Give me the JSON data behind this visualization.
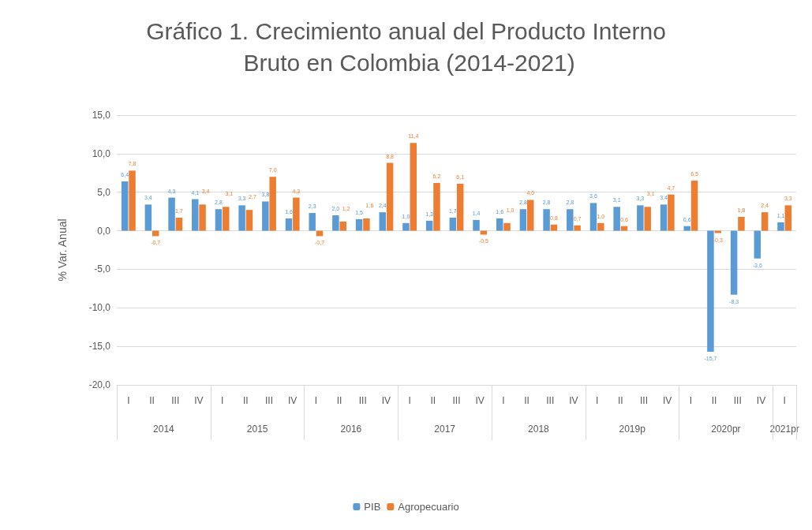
{
  "chart_data": {
    "type": "bar",
    "title": "Gráfico 1. Crecimiento anual del Producto Interno Bruto en Colombia (2014-2021)",
    "ylabel": "% Var. Anual",
    "categories": [
      "I",
      "II",
      "III",
      "IV",
      "I",
      "II",
      "III",
      "IV",
      "I",
      "II",
      "III",
      "IV",
      "I",
      "II",
      "III",
      "IV",
      "I",
      "II",
      "III",
      "IV",
      "I",
      "II",
      "III",
      "IV",
      "I",
      "II",
      "III",
      "IV",
      "I"
    ],
    "annotations": [
      "2014",
      "2015",
      "2016",
      "2017",
      "2018",
      "2019p",
      "2020pr",
      "2021pr"
    ],
    "series": [
      {
        "name": "PIB",
        "color": "#5b9bd5",
        "values": [
          6.4,
          3.4,
          4.3,
          4.1,
          2.8,
          3.3,
          3.8,
          1.6,
          2.3,
          2.0,
          1.5,
          2.4,
          1.0,
          1.3,
          1.7,
          1.4,
          1.6,
          2.8,
          2.8,
          2.8,
          3.6,
          3.1,
          3.3,
          3.4,
          0.6,
          -15.7,
          -8.3,
          -3.6,
          1.1
        ],
        "value_labels": [
          "6,4",
          "3,4",
          "4,3",
          "4,1",
          "2,8",
          "3,3",
          "3,8",
          "1,6",
          "2,3",
          "2,0",
          "1,5",
          "2,4",
          "1,0",
          "1,3",
          "1,7",
          "1,4",
          "1,6",
          "2,8",
          "2,8",
          "2,8",
          "3,6",
          "3,1",
          "3,3",
          "3,4",
          "0,6",
          "-15,7",
          "-8,3",
          "-3,6",
          "1,1"
        ]
      },
      {
        "name": "Agropecuario",
        "color": "#ed7d31",
        "values": [
          7.8,
          -0.7,
          1.7,
          3.4,
          3.1,
          2.7,
          7.0,
          4.3,
          -0.7,
          1.2,
          1.6,
          8.8,
          11.4,
          6.2,
          6.1,
          -0.5,
          1.0,
          4.0,
          0.8,
          0.7,
          1.0,
          0.6,
          3.1,
          4.7,
          6.5,
          -0.3,
          1.8,
          2.4,
          3.3
        ],
        "value_labels": [
          "7,8",
          "-0,7",
          "1,7",
          "3,4",
          "3,1",
          "2,7",
          "7,0",
          "4,3",
          "-0,7",
          "1,2",
          "1,6",
          "8,8",
          "11,4",
          "6,2",
          "6,1",
          "-0,5",
          "1,0",
          "4,0",
          "0,8",
          "0,7",
          "1,0",
          "0,6",
          "3,1",
          "4,7",
          "6,5",
          "-0,3",
          "1,8",
          "2,4",
          "3,3"
        ]
      }
    ],
    "ylim": [
      -20,
      15
    ],
    "yticks": [
      {
        "value": -20,
        "label": "-20,0"
      },
      {
        "value": -15,
        "label": "-15,0"
      },
      {
        "value": -10,
        "label": "-10,0"
      },
      {
        "value": -5,
        "label": "-5,0"
      },
      {
        "value": 0,
        "label": "0,0"
      },
      {
        "value": 5,
        "label": "5,0"
      },
      {
        "value": 10,
        "label": "10,0"
      },
      {
        "value": 15,
        "label": "15,0"
      }
    ],
    "grid": "y",
    "legend": "bottom"
  }
}
